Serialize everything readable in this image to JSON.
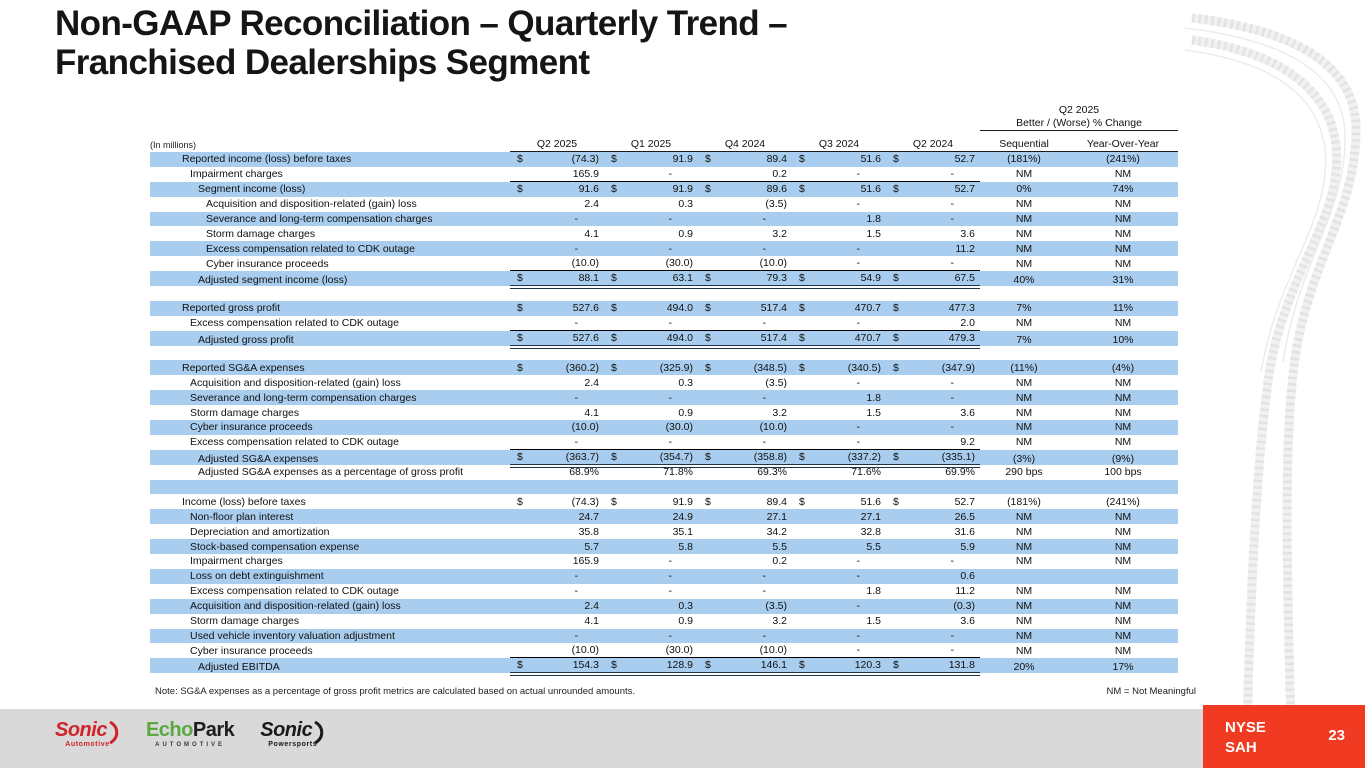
{
  "slide": {
    "title_line1": "Non-GAAP Reconciliation – Quarterly Trend –",
    "title_line2": "Franchised Dealerships Segment"
  },
  "table": {
    "units_label": "(In millions)",
    "quarter_headers": [
      "Q2 2025",
      "Q1 2025",
      "Q4 2024",
      "Q3 2024",
      "Q2 2024"
    ],
    "change_header": {
      "line1": "Q2 2025",
      "line2": "Better / (Worse) % Change",
      "col1": "Sequential",
      "col2": "Year-Over-Year"
    },
    "rows": [
      {
        "label": "Reported income (loss) before taxes",
        "indent": 0,
        "dollar": true,
        "values": [
          "(74.3)",
          "91.9",
          "89.4",
          "51.6",
          "52.7"
        ],
        "seq": "(181%)",
        "yoy": "(241%)"
      },
      {
        "label": "Impairment charges",
        "indent": 1,
        "values": [
          "165.9",
          "-",
          "0.2",
          "-",
          "-"
        ],
        "seq": "NM",
        "yoy": "NM",
        "underline": "single"
      },
      {
        "label": "Segment income (loss)",
        "indent": 2,
        "dollar": true,
        "values": [
          "91.6",
          "91.9",
          "89.6",
          "51.6",
          "52.7"
        ],
        "seq": "0%",
        "yoy": "74%"
      },
      {
        "label": "Acquisition and disposition-related (gain) loss",
        "indent": 3,
        "values": [
          "2.4",
          "0.3",
          "(3.5)",
          "-",
          "-"
        ],
        "seq": "NM",
        "yoy": "NM"
      },
      {
        "label": "Severance and long-term compensation charges",
        "indent": 3,
        "values": [
          "-",
          "-",
          "-",
          "1.8",
          "-"
        ],
        "seq": "NM",
        "yoy": "NM"
      },
      {
        "label": "Storm damage charges",
        "indent": 3,
        "values": [
          "4.1",
          "0.9",
          "3.2",
          "1.5",
          "3.6"
        ],
        "seq": "NM",
        "yoy": "NM"
      },
      {
        "label": "Excess compensation related to CDK outage",
        "indent": 3,
        "values": [
          "-",
          "-",
          "-",
          "-",
          "11.2"
        ],
        "seq": "NM",
        "yoy": "NM"
      },
      {
        "label": "Cyber insurance proceeds",
        "indent": 3,
        "values": [
          "(10.0)",
          "(30.0)",
          "(10.0)",
          "-",
          "-"
        ],
        "seq": "NM",
        "yoy": "NM",
        "underline": "single"
      },
      {
        "label": "Adjusted segment income (loss)",
        "indent": 2,
        "dollar": true,
        "values": [
          "88.1",
          "63.1",
          "79.3",
          "54.9",
          "67.5"
        ],
        "seq": "40%",
        "yoy": "31%",
        "underline": "double"
      },
      {
        "blank": true
      },
      {
        "label": "Reported gross profit",
        "indent": 0,
        "dollar": true,
        "values": [
          "527.6",
          "494.0",
          "517.4",
          "470.7",
          "477.3"
        ],
        "seq": "7%",
        "yoy": "11%"
      },
      {
        "label": "Excess compensation related to CDK outage",
        "indent": 1,
        "values": [
          "-",
          "-",
          "-",
          "-",
          "2.0"
        ],
        "seq": "NM",
        "yoy": "NM",
        "underline": "single"
      },
      {
        "label": "Adjusted gross profit",
        "indent": 2,
        "dollar": true,
        "values": [
          "527.6",
          "494.0",
          "517.4",
          "470.7",
          "479.3"
        ],
        "seq": "7%",
        "yoy": "10%",
        "underline": "double"
      },
      {
        "blank": true
      },
      {
        "label": "Reported SG&A expenses",
        "indent": 0,
        "dollar": true,
        "values": [
          "(360.2)",
          "(325.9)",
          "(348.5)",
          "(340.5)",
          "(347.9)"
        ],
        "seq": "(11%)",
        "yoy": "(4%)"
      },
      {
        "label": "Acquisition and disposition-related (gain) loss",
        "indent": 1,
        "values": [
          "2.4",
          "0.3",
          "(3.5)",
          "-",
          "-"
        ],
        "seq": "NM",
        "yoy": "NM"
      },
      {
        "label": "Severance and long-term compensation charges",
        "indent": 1,
        "values": [
          "-",
          "-",
          "-",
          "1.8",
          "-"
        ],
        "seq": "NM",
        "yoy": "NM"
      },
      {
        "label": "Storm damage charges",
        "indent": 1,
        "values": [
          "4.1",
          "0.9",
          "3.2",
          "1.5",
          "3.6"
        ],
        "seq": "NM",
        "yoy": "NM"
      },
      {
        "label": "Cyber insurance proceeds",
        "indent": 1,
        "values": [
          "(10.0)",
          "(30.0)",
          "(10.0)",
          "-",
          "-"
        ],
        "seq": "NM",
        "yoy": "NM"
      },
      {
        "label": "Excess compensation related to CDK outage",
        "indent": 1,
        "values": [
          "-",
          "-",
          "-",
          "-",
          "9.2"
        ],
        "seq": "NM",
        "yoy": "NM",
        "underline": "single"
      },
      {
        "label": "Adjusted SG&A expenses",
        "indent": 2,
        "dollar": true,
        "values": [
          "(363.7)",
          "(354.7)",
          "(358.8)",
          "(337.2)",
          "(335.1)"
        ],
        "seq": "(3%)",
        "yoy": "(9%)",
        "underline": "double"
      },
      {
        "label": "Adjusted SG&A expenses as a percentage of gross profit",
        "indent": 2,
        "values": [
          "68.9%",
          "71.8%",
          "69.3%",
          "71.6%",
          "69.9%"
        ],
        "seq": "290 bps",
        "yoy": "100 bps"
      },
      {
        "blank": true
      },
      {
        "label": "Income (loss) before taxes",
        "indent": 0,
        "dollar": true,
        "values": [
          "(74.3)",
          "91.9",
          "89.4",
          "51.6",
          "52.7"
        ],
        "seq": "(181%)",
        "yoy": "(241%)"
      },
      {
        "label": "Non-floor plan interest",
        "indent": 1,
        "values": [
          "24.7",
          "24.9",
          "27.1",
          "27.1",
          "26.5"
        ],
        "seq": "NM",
        "yoy": "NM"
      },
      {
        "label": "Depreciation and amortization",
        "indent": 1,
        "values": [
          "35.8",
          "35.1",
          "34.2",
          "32.8",
          "31.6"
        ],
        "seq": "NM",
        "yoy": "NM"
      },
      {
        "label": "Stock-based compensation expense",
        "indent": 1,
        "values": [
          "5.7",
          "5.8",
          "5.5",
          "5.5",
          "5.9"
        ],
        "seq": "NM",
        "yoy": "NM"
      },
      {
        "label": "Impairment charges",
        "indent": 1,
        "values": [
          "165.9",
          "-",
          "0.2",
          "-",
          "-"
        ],
        "seq": "NM",
        "yoy": "NM"
      },
      {
        "label": "Loss on debt extinguishment",
        "indent": 1,
        "values": [
          "-",
          "-",
          "-",
          "-",
          "0.6"
        ],
        "seq": "",
        "yoy": ""
      },
      {
        "label": "Excess compensation related to CDK outage",
        "indent": 1,
        "values": [
          "-",
          "-",
          "-",
          "1.8",
          "11.2"
        ],
        "seq": "NM",
        "yoy": "NM"
      },
      {
        "label": "Acquisition and disposition-related (gain) loss",
        "indent": 1,
        "values": [
          "2.4",
          "0.3",
          "(3.5)",
          "-",
          "(0.3)"
        ],
        "seq": "NM",
        "yoy": "NM"
      },
      {
        "label": "Storm damage charges",
        "indent": 1,
        "values": [
          "4.1",
          "0.9",
          "3.2",
          "1.5",
          "3.6"
        ],
        "seq": "NM",
        "yoy": "NM"
      },
      {
        "label": "Used vehicle inventory valuation adjustment",
        "indent": 1,
        "values": [
          "-",
          "-",
          "-",
          "-",
          "-"
        ],
        "seq": "NM",
        "yoy": "NM"
      },
      {
        "label": "Cyber insurance proceeds",
        "indent": 1,
        "values": [
          "(10.0)",
          "(30.0)",
          "(10.0)",
          "-",
          "-"
        ],
        "seq": "NM",
        "yoy": "NM",
        "underline": "single"
      },
      {
        "label": "Adjusted EBITDA",
        "indent": 2,
        "dollar": true,
        "values": [
          "154.3",
          "128.9",
          "146.1",
          "120.3",
          "131.8"
        ],
        "seq": "20%",
        "yoy": "17%",
        "underline": "double"
      }
    ]
  },
  "note": {
    "text": "Note: SG&A expenses as a percentage of gross profit metrics are calculated based on actual unrounded amounts.",
    "nm": "NM = Not Meaningful"
  },
  "logos": {
    "sonic_automotive": {
      "word": "Sonic",
      "sub": "Automotive"
    },
    "echopark": {
      "word_green": "Echo",
      "word_black": "Park",
      "sub": "AUTOMOTIVE"
    },
    "sonic_powersports": {
      "word": "Sonic",
      "sub": "Powersports"
    }
  },
  "footer": {
    "ticker_line1": "NYSE",
    "ticker_line2": "SAH",
    "page_number": "23"
  },
  "colors": {
    "row_blue": "#A9CDEE",
    "underline_dark": "#1F3349",
    "footer_gray": "#D9D9D9",
    "ticker_red": "#F03A21",
    "sonic_red": "#D2232A",
    "echopark_green": "#5BA843"
  }
}
